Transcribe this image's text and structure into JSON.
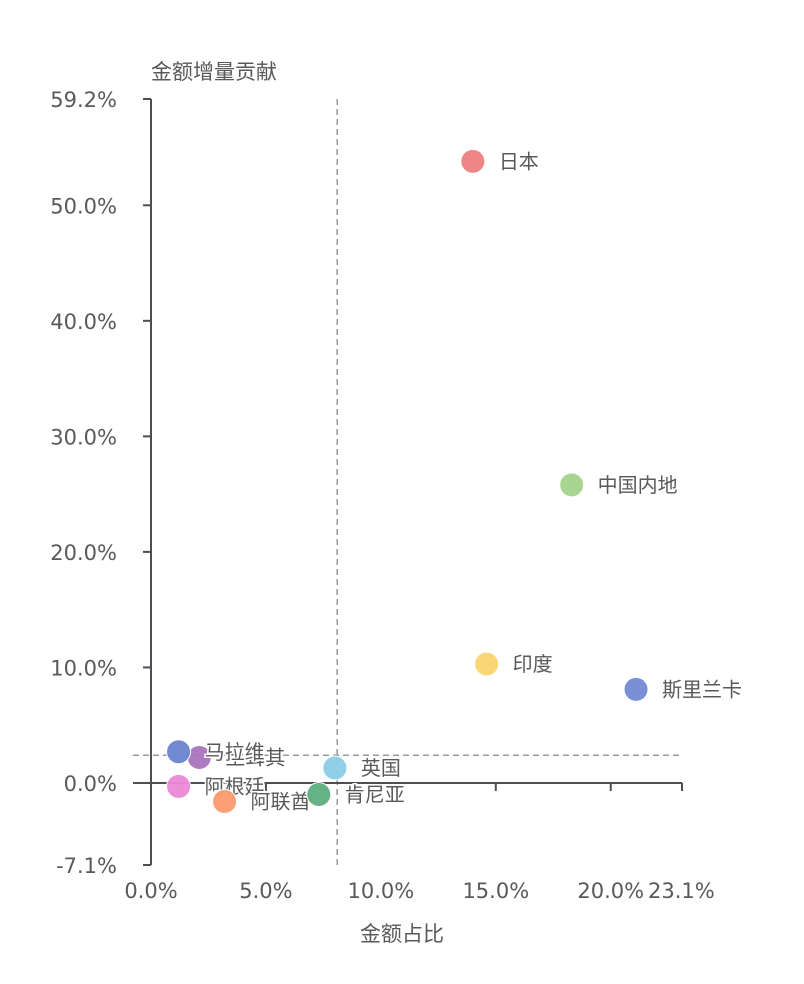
{
  "chart_data": {
    "type": "scatter",
    "title": "",
    "xlabel": "金额占比",
    "ylabel": "金额增量贡献",
    "xlim": [
      0.0,
      23.1
    ],
    "ylim": [
      -7.1,
      59.2
    ],
    "x_ticks": [
      "0.0%",
      "5.0%",
      "10.0%",
      "15.0%",
      "20.0%",
      "23.1%"
    ],
    "x_tick_values": [
      0,
      5,
      10,
      15,
      20,
      23.1
    ],
    "y_ticks": [
      "-7.1%",
      "0.0%",
      "10.0%",
      "20.0%",
      "30.0%",
      "40.0%",
      "50.0%",
      "59.2%"
    ],
    "y_tick_values": [
      -7.1,
      0,
      10,
      20,
      30,
      40,
      50,
      59.2
    ],
    "grid": false,
    "reference_lines": {
      "x_mean": 8.1,
      "y_mean": 2.4
    },
    "points": [
      {
        "name": "日本",
        "x": 14.0,
        "y": 53.8,
        "color": "#ee8080"
      },
      {
        "name": "中国内地",
        "x": 18.3,
        "y": 25.8,
        "color": "#a3d48c"
      },
      {
        "name": "印度",
        "x": 14.6,
        "y": 10.3,
        "color": "#fad46f"
      },
      {
        "name": "斯里兰卡",
        "x": 21.1,
        "y": 8.1,
        "color": "#7489d3"
      },
      {
        "name": "土耳其",
        "x": 2.1,
        "y": 2.2,
        "color": "#a974bd"
      },
      {
        "name": "马拉维",
        "x": 1.2,
        "y": 2.7,
        "color": "#6a84cf"
      },
      {
        "name": "阿根廷",
        "x": 1.2,
        "y": -0.3,
        "color": "#eb88d6"
      },
      {
        "name": "阿联酋",
        "x": 3.2,
        "y": -1.6,
        "color": "#fc9a6d"
      },
      {
        "name": "肯尼亚",
        "x": 7.3,
        "y": -1.0,
        "color": "#5dae80"
      },
      {
        "name": "英国",
        "x": 8.0,
        "y": 1.3,
        "color": "#89cde6"
      }
    ]
  },
  "axes": {
    "x_title": "金额占比",
    "y_title": "金额增量贡献"
  }
}
